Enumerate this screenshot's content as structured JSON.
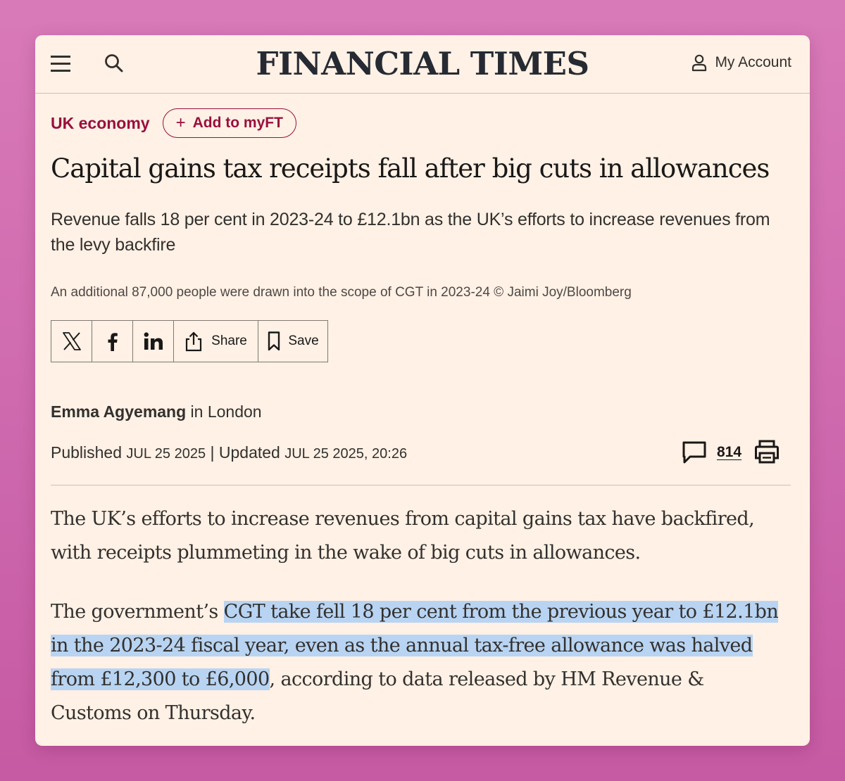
{
  "header": {
    "masthead": "FINANCIAL TIMES",
    "account_label": "My Account",
    "icons": [
      "menu-icon",
      "search-icon",
      "user-icon"
    ]
  },
  "article": {
    "topic": "UK economy",
    "myft_label": "Add to myFT",
    "headline": "Capital gains tax receipts fall after big cuts in allowances",
    "standfirst": "Revenue falls 18 per cent in 2023-24 to £12.1bn as the UK’s efforts to increase revenues from the levy backfire",
    "caption": "An additional 87,000 people were drawn into the scope of CGT in 2023-24 © Jaimi Joy/Bloomberg",
    "share": {
      "share_label": "Share",
      "save_label": "Save"
    },
    "author": "Emma Agyemang",
    "location": "in London",
    "published_label": "Published",
    "published_date": "JUL 25 2025",
    "separator": "|",
    "updated_label": "Updated",
    "updated_date": "JUL 25 2025, 20:26",
    "comment_count": "814",
    "paragraph1": "The UK’s efforts to increase revenues from capital gains tax have backfired, with receipts plummeting in the wake of big cuts in allowances.",
    "paragraph2_before": "The government’s ",
    "paragraph2_highlight": "CGT take fell 18 per cent from the previous year to £12.1bn in the 2023-24 fiscal year, even as the annual tax-free allowance was halved from £12,300 to £6,000",
    "paragraph2_after": ", according to data released by HM Revenue & Customs on Thursday."
  },
  "colors": {
    "background_pink": "#d07ab7",
    "paper": "#fff1e5",
    "claret": "#990f3d",
    "highlight": "#b8d4f2"
  }
}
